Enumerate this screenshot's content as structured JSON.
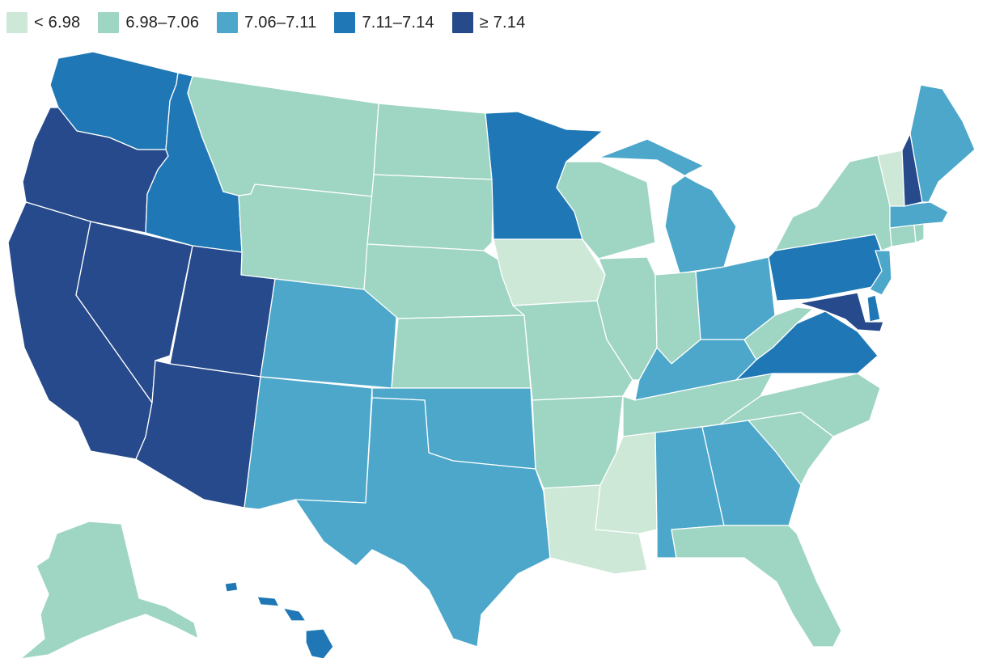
{
  "legend": [
    {
      "label": "< 6.98",
      "color": "#cde8d7"
    },
    {
      "label": "6.98–7.06",
      "color": "#9fd5c3"
    },
    {
      "label": "7.06–7.11",
      "color": "#4ca7ca"
    },
    {
      "label": "7.11–7.14",
      "color": "#1f78b5"
    },
    {
      "label": "≥ 7.14",
      "color": "#264a8b"
    }
  ],
  "states": [
    {
      "id": "WA",
      "bin": 3
    },
    {
      "id": "OR",
      "bin": 4
    },
    {
      "id": "CA",
      "bin": 4
    },
    {
      "id": "NV",
      "bin": 4
    },
    {
      "id": "ID",
      "bin": 3
    },
    {
      "id": "MT",
      "bin": 1
    },
    {
      "id": "WY",
      "bin": 1
    },
    {
      "id": "UT",
      "bin": 4
    },
    {
      "id": "AZ",
      "bin": 4
    },
    {
      "id": "CO",
      "bin": 2
    },
    {
      "id": "NM",
      "bin": 2
    },
    {
      "id": "ND",
      "bin": 1
    },
    {
      "id": "SD",
      "bin": 1
    },
    {
      "id": "NE",
      "bin": 1
    },
    {
      "id": "KS",
      "bin": 1
    },
    {
      "id": "OK",
      "bin": 2
    },
    {
      "id": "TX",
      "bin": 2
    },
    {
      "id": "MN",
      "bin": 3
    },
    {
      "id": "IA",
      "bin": 0
    },
    {
      "id": "MO",
      "bin": 1
    },
    {
      "id": "AR",
      "bin": 1
    },
    {
      "id": "LA",
      "bin": 0
    },
    {
      "id": "WI",
      "bin": 1
    },
    {
      "id": "IL",
      "bin": 1
    },
    {
      "id": "MI",
      "bin": 2
    },
    {
      "id": "IN",
      "bin": 1
    },
    {
      "id": "OH",
      "bin": 2
    },
    {
      "id": "KY",
      "bin": 2
    },
    {
      "id": "TN",
      "bin": 1
    },
    {
      "id": "MS",
      "bin": 0
    },
    {
      "id": "AL",
      "bin": 2
    },
    {
      "id": "GA",
      "bin": 2
    },
    {
      "id": "FL",
      "bin": 1
    },
    {
      "id": "SC",
      "bin": 1
    },
    {
      "id": "NC",
      "bin": 1
    },
    {
      "id": "VA",
      "bin": 3
    },
    {
      "id": "WV",
      "bin": 1
    },
    {
      "id": "PA",
      "bin": 3
    },
    {
      "id": "NY",
      "bin": 1
    },
    {
      "id": "NJ",
      "bin": 2
    },
    {
      "id": "DE",
      "bin": 3
    },
    {
      "id": "MD",
      "bin": 4
    },
    {
      "id": "CT",
      "bin": 1
    },
    {
      "id": "RI",
      "bin": 1
    },
    {
      "id": "MA",
      "bin": 2
    },
    {
      "id": "VT",
      "bin": 0
    },
    {
      "id": "NH",
      "bin": 4
    },
    {
      "id": "ME",
      "bin": 2
    },
    {
      "id": "AK",
      "bin": 1
    },
    {
      "id": "HI",
      "bin": 3
    }
  ]
}
